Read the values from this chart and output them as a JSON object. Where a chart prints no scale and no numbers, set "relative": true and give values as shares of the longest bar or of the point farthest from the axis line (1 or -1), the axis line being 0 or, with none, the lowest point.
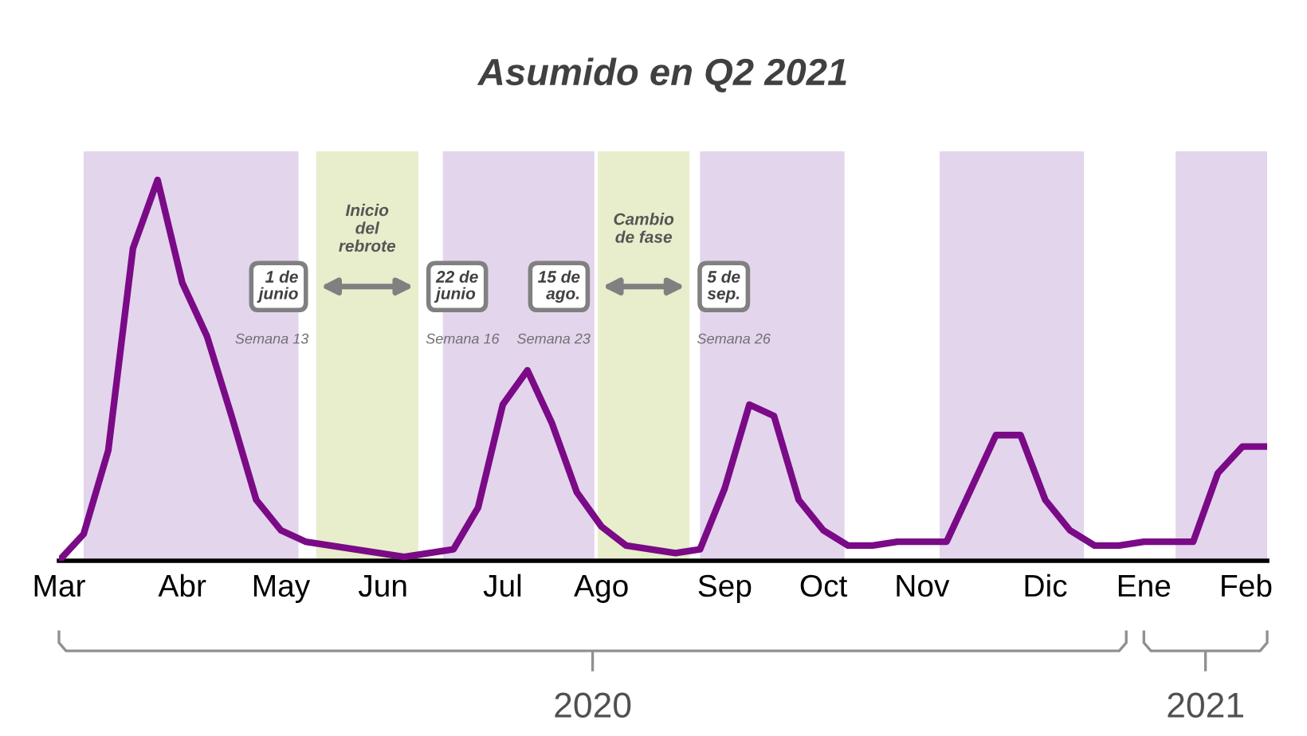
{
  "chart_data": {
    "type": "line",
    "title": "Asumido en Q2 2021",
    "relative": true,
    "x": [
      "2020-03-01",
      "2020-03-08",
      "2020-03-15",
      "2020-03-22",
      "2020-03-29",
      "2020-04-05",
      "2020-04-12",
      "2020-04-19",
      "2020-04-26",
      "2020-05-03",
      "2020-05-10",
      "2020-05-17",
      "2020-05-24",
      "2020-05-31",
      "2020-06-07",
      "2020-06-14",
      "2020-06-21",
      "2020-06-28",
      "2020-07-05",
      "2020-07-12",
      "2020-07-19",
      "2020-07-26",
      "2020-08-02",
      "2020-08-09",
      "2020-08-16",
      "2020-08-23",
      "2020-08-30",
      "2020-09-06",
      "2020-09-13",
      "2020-09-20",
      "2020-09-27",
      "2020-10-04",
      "2020-10-11",
      "2020-10-18",
      "2020-10-25",
      "2020-11-01",
      "2020-11-08",
      "2020-11-15",
      "2020-11-22",
      "2020-11-29",
      "2020-12-06",
      "2020-12-13",
      "2020-12-20",
      "2020-12-27",
      "2021-01-03",
      "2021-01-10",
      "2021-01-17",
      "2021-01-24",
      "2021-01-31",
      "2021-02-07"
    ],
    "series": [
      {
        "color": "#7b0a87",
        "values": [
          0,
          0.07,
          0.29,
          0.82,
          1,
          0.73,
          0.59,
          0.38,
          0.16,
          0.08,
          0.05,
          0.04,
          0.03,
          0.02,
          0.01,
          0.02,
          0.03,
          0.14,
          0.41,
          0.5,
          0.36,
          0.18,
          0.09,
          0.04,
          0.03,
          0.02,
          0.03,
          0.19,
          0.41,
          0.38,
          0.16,
          0.08,
          0.04,
          0.04,
          0.05,
          0.05,
          0.05,
          0.19,
          0.33,
          0.33,
          0.16,
          0.08,
          0.04,
          0.04,
          0.05,
          0.05,
          0.05,
          0.23,
          0.3,
          0.3
        ]
      }
    ],
    "xlim": [
      "2020-03-01",
      "2021-02-07"
    ],
    "xticks": [
      {
        "value": "2020-03-01",
        "label": "Mar"
      },
      {
        "value": "2020-04-05",
        "label": "Abr"
      },
      {
        "value": "2020-05-03",
        "label": "May"
      },
      {
        "value": "2020-06-01",
        "label": "Jun"
      },
      {
        "value": "2020-07-05",
        "label": "Jul"
      },
      {
        "value": "2020-08-02",
        "label": "Ago"
      },
      {
        "value": "2020-09-06",
        "label": "Sep"
      },
      {
        "value": "2020-10-04",
        "label": "Oct"
      },
      {
        "value": "2020-11-01",
        "label": "Nov"
      },
      {
        "value": "2020-12-06",
        "label": "Dic"
      },
      {
        "value": "2021-01-03",
        "label": "Ene"
      },
      {
        "value": "2021-02-01",
        "label": "Feb"
      }
    ],
    "bands": [
      {
        "axis": "x",
        "from": "2020-03-08",
        "to": "2020-05-08",
        "color": "#e2d5ec"
      },
      {
        "axis": "x",
        "from": "2020-06-18",
        "to": "2020-07-31",
        "color": "#e2d5ec"
      },
      {
        "axis": "x",
        "from": "2020-08-30",
        "to": "2020-10-10",
        "color": "#e2d5ec"
      },
      {
        "axis": "x",
        "from": "2020-11-06",
        "to": "2020-12-17",
        "color": "#e2d5ec"
      },
      {
        "axis": "x",
        "from": "2021-01-12",
        "to": "2021-02-07",
        "color": "#e2d5ec"
      },
      {
        "axis": "x",
        "from": "2020-05-13",
        "to": "2020-06-11",
        "color": "#e8edcc",
        "label": "Inicio\ndel\nrebrote"
      },
      {
        "axis": "x",
        "from": "2020-08-01",
        "to": "2020-08-27",
        "color": "#e8edcc",
        "label": "Cambio\nde fase"
      }
    ],
    "annotations": [
      "1 de\njunio",
      "Semana 13",
      "22 de\njunio",
      "Semana 16",
      "15 de\nago.",
      "Semana 23",
      "5 de\nsep.",
      "Semana 26",
      "2020",
      "2021"
    ]
  }
}
